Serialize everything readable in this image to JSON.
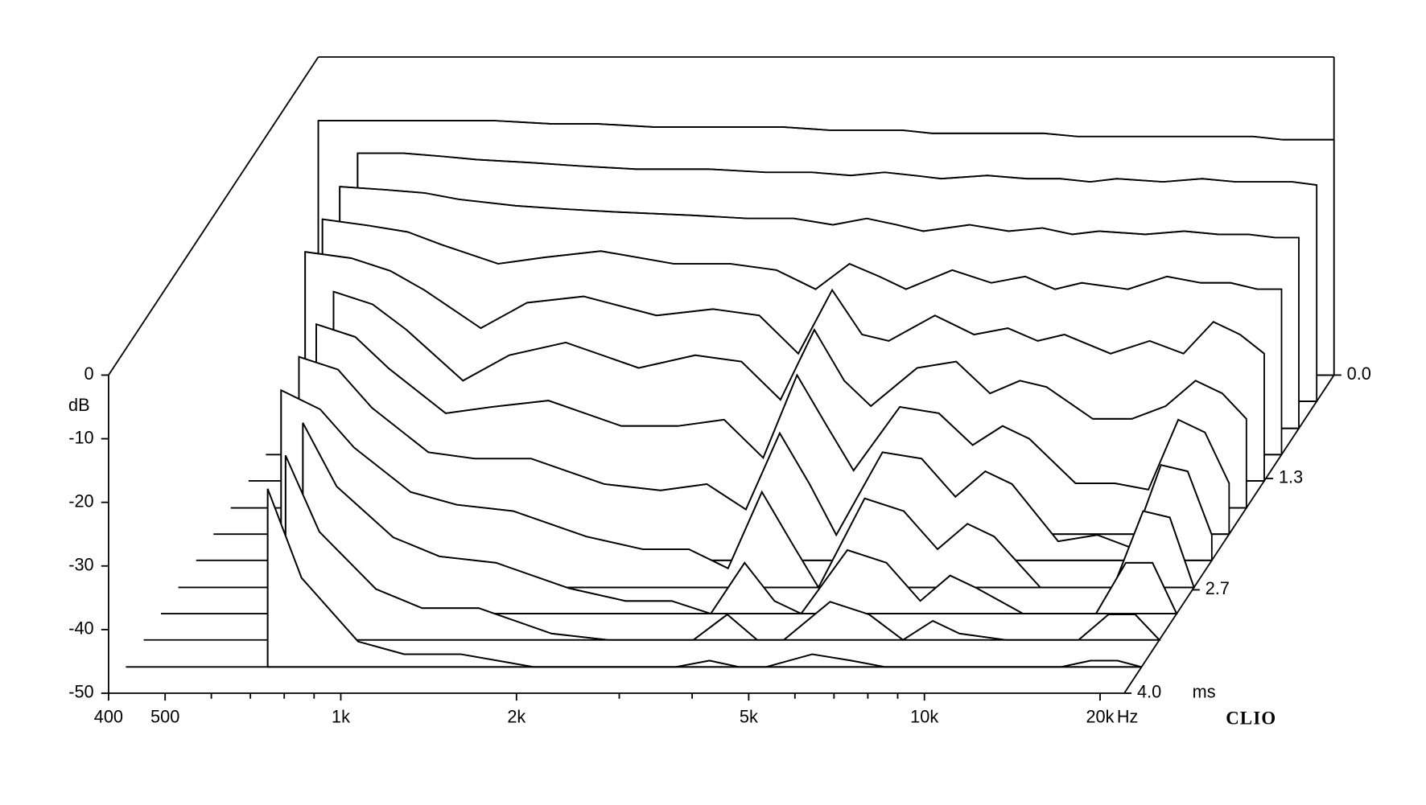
{
  "chart_data": {
    "type": "waterfall",
    "x": [
      400,
      500,
      600,
      700,
      800,
      1000,
      1200,
      1500,
      2000,
      2500,
      3000,
      3500,
      4000,
      4500,
      5000,
      6000,
      7000,
      8000,
      9000,
      10000,
      12000,
      14000,
      16000,
      18000,
      20000,
      22000
    ],
    "xlim": [
      400,
      22000
    ],
    "xscale": "log",
    "xticks": [
      400,
      500,
      {
        "value": 1000,
        "label": "1k"
      },
      {
        "value": 2000,
        "label": "2k"
      },
      {
        "value": 5000,
        "label": "5k"
      },
      {
        "value": 10000,
        "label": "10k"
      },
      {
        "value": 20000,
        "label": "20k"
      }
    ],
    "xminorticks": [
      600,
      700,
      800,
      900,
      3000,
      4000,
      6000,
      7000,
      8000,
      9000
    ],
    "xunit": "Hz",
    "ylim": [
      -50,
      0
    ],
    "yticks": [
      0,
      -10,
      -20,
      -30,
      -40,
      -50
    ],
    "ylabel": "dB",
    "zlim": [
      0,
      4
    ],
    "zticks": [
      {
        "value": 0,
        "label": "0.0"
      },
      1.3,
      2.7,
      {
        "value": 4,
        "label": "4.0"
      }
    ],
    "zunit": "ms",
    "brand": "CLIO",
    "color": "#000000",
    "series": [
      {
        "t": 0,
        "values": [
          -10,
          -10,
          -10,
          -10,
          -10,
          -10.5,
          -10.5,
          -11,
          -11,
          -11,
          -11.5,
          -11.5,
          -11.5,
          -12,
          -12,
          -12,
          -12,
          -12.5,
          -12.5,
          -12.5,
          -12.5,
          -12.5,
          -12.5,
          -13,
          -13,
          -13
        ]
      },
      {
        "t": 0.33,
        "values": [
          null,
          -11,
          -11,
          -11.5,
          -12,
          -12.5,
          -13,
          -13.5,
          -13.5,
          -14,
          -14,
          -14.5,
          -14,
          -14.5,
          -15,
          -14.5,
          -15,
          -15,
          -15.5,
          -15,
          -15.5,
          -15,
          -15.5,
          -15.5,
          -15.5,
          -16
        ]
      },
      {
        "t": 0.67,
        "values": [
          null,
          -12,
          -12.5,
          -13,
          -14,
          -15,
          -15.5,
          -16,
          -16.5,
          -17,
          -17,
          -18,
          -17,
          -18,
          -19,
          -18,
          -19,
          -18.5,
          -19.5,
          -19,
          -19.5,
          -19,
          -19.5,
          -19.5,
          -20,
          -20
        ]
      },
      {
        "t": 1.0,
        "values": [
          null,
          -13,
          -14,
          -15,
          -17,
          -20,
          -19,
          -18,
          -20,
          -20,
          -21,
          -24,
          -20,
          -22,
          -24,
          -21,
          -23,
          -22,
          -24,
          -23,
          -24,
          -22,
          -23,
          -23,
          -24,
          -24
        ]
      },
      {
        "t": 1.33,
        "values": [
          null,
          -14,
          -15,
          -17,
          -20,
          -26,
          -22,
          -21,
          -24,
          -23,
          -24,
          -30,
          -20,
          -27,
          -28,
          -24,
          -27,
          -26,
          -28,
          -27,
          -30,
          -28,
          -30,
          -25,
          -27,
          -30
        ]
      },
      {
        "t": 1.67,
        "values": [
          null,
          null,
          -16,
          -18,
          -22,
          -30,
          -26,
          -24,
          -28,
          -26,
          -27,
          -33,
          -22,
          -30,
          -34,
          -28,
          -27,
          -32,
          -30,
          -31,
          -36,
          -36,
          -34,
          -30,
          -32,
          -36
        ]
      },
      {
        "t": 2.0,
        "values": [
          null,
          null,
          -17,
          -19,
          -24,
          -31,
          -30,
          -29,
          -33,
          -33,
          -32,
          -38,
          -25,
          -33,
          -40,
          -30,
          -31,
          -36,
          -33,
          -35,
          -42,
          -42,
          -43,
          -32,
          -34,
          -42
        ]
      },
      {
        "t": 2.33,
        "values": [
          null,
          null,
          -18,
          -20,
          -26,
          -33,
          -34,
          -34,
          -38,
          -39,
          -38,
          -42,
          -30,
          -38,
          -46,
          -33,
          -34,
          -40,
          -36,
          -38,
          -47,
          -46,
          -48,
          -35,
          -36,
          -46
        ]
      },
      {
        "t": 2.67,
        "values": [
          null,
          null,
          -19,
          -22,
          -28,
          -35,
          -37,
          -38,
          -42,
          -44,
          -44,
          -47,
          -35,
          -43,
          -50,
          -36,
          -38,
          -44,
          -40,
          -42,
          -50,
          -50,
          -50,
          -38,
          -39,
          -50
        ]
      },
      {
        "t": 3.0,
        "values": [
          null,
          null,
          null,
          -20,
          -30,
          -38,
          -41,
          -42,
          -46,
          -48,
          -48,
          -50,
          -42,
          -48,
          -50,
          -40,
          -42,
          -48,
          -44,
          -46,
          -50,
          -50,
          -50,
          -42,
          -42,
          -50
        ]
      },
      {
        "t": 3.33,
        "values": [
          null,
          null,
          null,
          -21,
          -33,
          -42,
          -45,
          -45,
          -49,
          -50,
          -50,
          -50,
          -46,
          -50,
          -50,
          -44,
          -46,
          -50,
          -47,
          -49,
          -50,
          -50,
          -50,
          -46,
          -46,
          -50
        ]
      },
      {
        "t": 3.67,
        "values": [
          null,
          null,
          null,
          -22,
          -36,
          -46,
          -48,
          -48,
          -50,
          -50,
          -50,
          -50,
          -49,
          -50,
          -50,
          -48,
          -49,
          -50,
          -50,
          -50,
          -50,
          -50,
          -50,
          -49,
          -49,
          -50
        ]
      }
    ]
  }
}
